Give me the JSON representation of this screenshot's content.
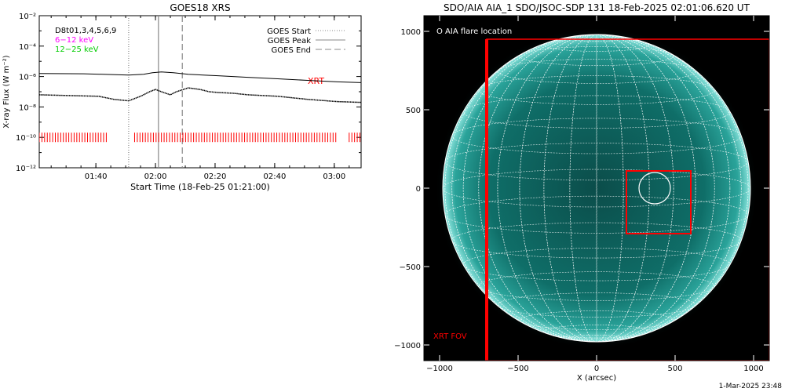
{
  "colors": {
    "xrt": "#ff0000",
    "band_low": "#ff00ff",
    "band_high": "#00cc00",
    "disk": "#0f6e68",
    "sky": "#000000"
  },
  "left_panel": {
    "title": "GOES18 XRS",
    "ylabel": "X-ray Flux (W m⁻²)",
    "xlabel": "Start Time (18-Feb-25 01:21:00)",
    "det_label": "D8t01,3,4,5,6,9",
    "band_low": "6−12 keV",
    "band_high": "12−25 keV",
    "xrt_label": "XRT",
    "legend": [
      {
        "label": "GOES Start",
        "style": "dotted"
      },
      {
        "label": "GOES Peak",
        "style": "solid"
      },
      {
        "label": "GOES End",
        "style": "dashed"
      }
    ]
  },
  "right_panel": {
    "title": "SDO/AIA AIA_1 SDO/JSOC-SDP 131 18-Feb-2025 02:01:06.620 UT",
    "legend": "O AIA flare location",
    "fov_label": "XRT FOV",
    "xlabel": "X (arcsec)",
    "footer": "1-Mar-2025 23:48"
  },
  "chart_data": [
    {
      "type": "line",
      "title": "GOES18 XRS",
      "xlabel": "Start Time (18-Feb-25 01:21:00)",
      "ylabel": "X-ray Flux (W m⁻²)",
      "x_unit": "minutes since 01:21:00",
      "xlim": [
        0,
        108
      ],
      "ylim_log10": [
        -12,
        -2
      ],
      "y_scale": "log",
      "x_ticks": [
        {
          "v": 19,
          "label": "01:40"
        },
        {
          "v": 39,
          "label": "02:00"
        },
        {
          "v": 59,
          "label": "02:20"
        },
        {
          "v": 79,
          "label": "02:40"
        },
        {
          "v": 99,
          "label": "03:00"
        }
      ],
      "y_ticks": [
        {
          "v": -12,
          "label": "10⁻¹²"
        },
        {
          "v": -10,
          "label": "10⁻¹⁰"
        },
        {
          "v": -8,
          "label": "10⁻⁸"
        },
        {
          "v": -6,
          "label": "10⁻⁶"
        },
        {
          "v": -4,
          "label": "10⁻⁴"
        },
        {
          "v": -2,
          "label": "10⁻²"
        }
      ],
      "series": [
        {
          "style": "solid",
          "x": [
            0,
            15,
            30,
            35,
            38,
            41,
            45,
            50,
            55,
            60,
            70,
            80,
            90,
            100,
            108
          ],
          "log10_flux": [
            -5.8,
            -5.82,
            -5.9,
            -5.85,
            -5.75,
            -5.7,
            -5.75,
            -5.85,
            -5.9,
            -5.95,
            -6.05,
            -6.15,
            -6.25,
            -6.35,
            -6.4
          ]
        },
        {
          "style": "dotted",
          "x": [
            0,
            10,
            20,
            25,
            30,
            34,
            37,
            39,
            41,
            44,
            46,
            50,
            54,
            57,
            60,
            65,
            70,
            80,
            90,
            100,
            108
          ],
          "log10_flux": [
            -7.2,
            -7.25,
            -7.3,
            -7.5,
            -7.6,
            -7.3,
            -7.0,
            -6.85,
            -7.0,
            -7.2,
            -7.0,
            -6.75,
            -6.85,
            -7.0,
            -7.05,
            -7.1,
            -7.2,
            -7.3,
            -7.5,
            -7.65,
            -7.7
          ]
        }
      ],
      "vlines": [
        {
          "label": "GOES Start",
          "x": 30
        },
        {
          "label": "GOES Peak",
          "x": 40
        },
        {
          "label": "GOES End",
          "x": 48
        }
      ],
      "xrt_intervals": [
        [
          0,
          23
        ],
        [
          32,
          100
        ],
        [
          104,
          108
        ]
      ],
      "xrt_level_log10": -10
    },
    {
      "type": "scatter",
      "title": "SDO/AIA AIA_1 SDO/JSOC-SDP 131 18-Feb-2025 02:01:06.620 UT",
      "xlabel": "X (arcsec)",
      "xlim": [
        -1100,
        1100
      ],
      "ylim": [
        -1100,
        1100
      ],
      "x_ticks": [
        -1000,
        -500,
        0,
        500,
        1000
      ],
      "y_ticks": [
        -1000,
        -500,
        0,
        500,
        1000
      ],
      "solar_radius": 980,
      "flare_location": {
        "x": 370,
        "y": 0
      },
      "xrt_fov": {
        "x0": -700,
        "x1": 1100,
        "y0": -1100,
        "y1": 950
      },
      "zoom_box": {
        "x0": 190,
        "x1": 600,
        "y0": -290,
        "y1": 110
      }
    }
  ]
}
